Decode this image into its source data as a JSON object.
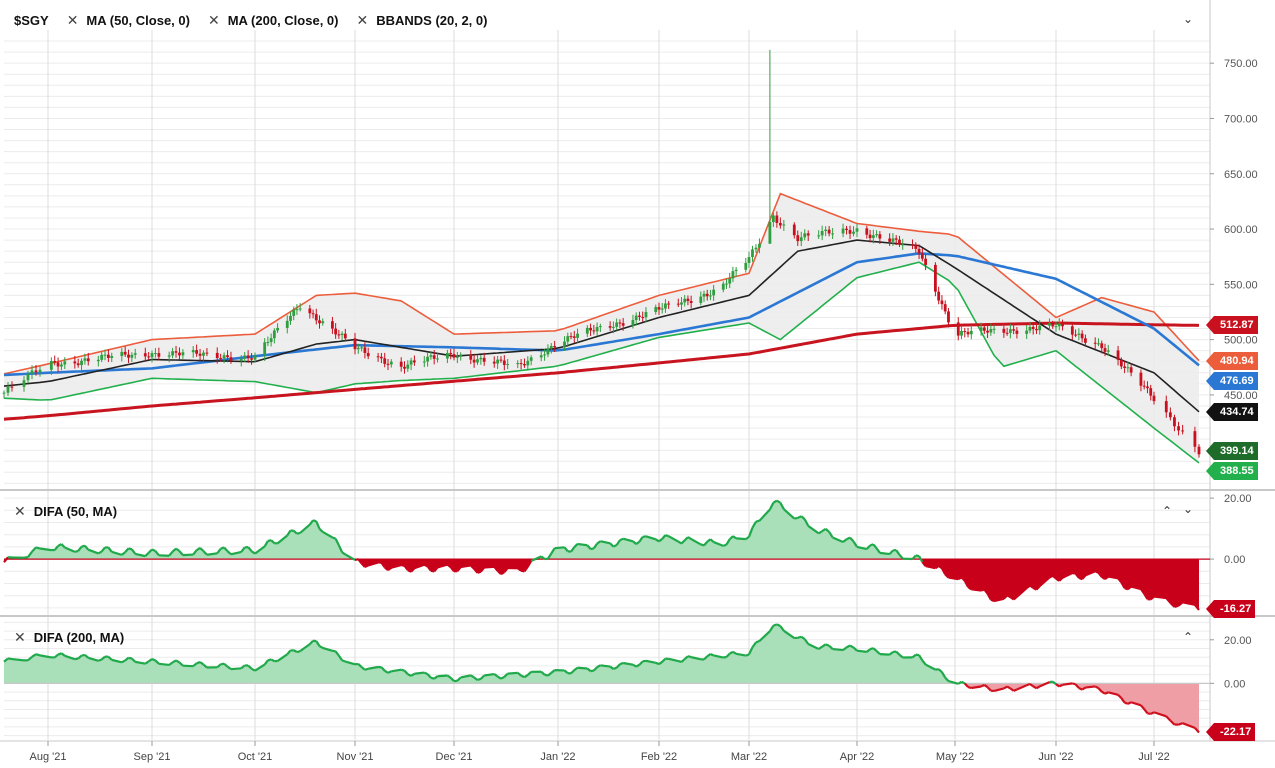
{
  "colors": {
    "up": "#2e9e3e",
    "down": "#c8101e",
    "bb_upper": "#ec5d3c",
    "bb_lower": "#22b04c",
    "bb_mid": "#222222",
    "ma50": "#2a78d4",
    "ma200": "#c8141e",
    "difa_pos_line": "#1fa94a",
    "difa_pos_fill": "#a9dfb9",
    "difa_neg": "#c8001a",
    "difa_neg_fill": "#ef9ea5",
    "difa_neg_line": "#d0101e"
  },
  "legend_main": [
    {
      "label": "$SGY",
      "closable": false
    },
    {
      "label": "MA (50, Close, 0)",
      "closable": true
    },
    {
      "label": "MA (200, Close, 0)",
      "closable": true
    },
    {
      "label": "BBANDS (20, 2, 0)",
      "closable": true
    }
  ],
  "legend_difa50": {
    "label": "DIFA (50, MA)"
  },
  "legend_difa200": {
    "label": "DIFA (200, MA)"
  },
  "icons": {
    "close": "close-icon",
    "collapse": "chevron-down-icon",
    "expand": "chevron-up-icon"
  },
  "badges": [
    {
      "text": "512.87",
      "color": "#c8101e",
      "pane": "main",
      "value": 512.87
    },
    {
      "text": "480.94",
      "color": "#ec5d3c",
      "pane": "main",
      "value": 480.94
    },
    {
      "text": "476.69",
      "color": "#2a78d4",
      "pane": "main",
      "value": 476.69
    },
    {
      "text": "434.74",
      "color": "#111111",
      "pane": "main",
      "value": 434.74
    },
    {
      "text": "399.14",
      "color": "#1e6b2a",
      "pane": "main",
      "value": 399.14
    },
    {
      "text": "388.55",
      "color": "#22b04c",
      "pane": "main",
      "value": 388.55
    },
    {
      "text": "-16.27",
      "color": "#c8001a",
      "pane": "difa50",
      "value": -16.27
    },
    {
      "text": "-22.17",
      "color": "#c8001a",
      "pane": "difa200",
      "value": -22.17
    }
  ],
  "chart_data": [
    {
      "type": "candlestick",
      "title": "$SGY",
      "x_ticks": [
        "Aug '21",
        "Sep '21",
        "Oct '21",
        "Nov '21",
        "Dec '21",
        "Jan '22",
        "Feb '22",
        "Mar '22",
        "Apr '22",
        "May '22",
        "Jun '22",
        "Jul '22"
      ],
      "y_ticks": [
        "450.00",
        "500.00",
        "550.00",
        "600.00",
        "650.00",
        "700.00",
        "750.00"
      ],
      "ylim": [
        364,
        780
      ],
      "grid": true,
      "x": [
        "2021-07-21",
        "2021-08-01",
        "2021-09-01",
        "2021-10-01",
        "2021-10-15",
        "2021-11-01",
        "2021-11-15",
        "2021-12-01",
        "2021-12-20",
        "2022-01-01",
        "2022-02-01",
        "2022-02-20",
        "2022-03-01",
        "2022-03-06",
        "2022-03-08",
        "2022-03-15",
        "2022-04-01",
        "2022-04-20",
        "2022-05-01",
        "2022-06-01",
        "2022-06-15",
        "2022-07-01",
        "2022-07-12"
      ],
      "close": [
        452,
        478,
        488,
        484,
        532,
        492,
        476,
        487,
        475,
        498,
        527,
        546,
        573,
        600,
        612,
        592,
        600,
        580,
        505,
        512,
        495,
        447,
        399.14
      ],
      "high_spike": {
        "date": "2022-03-07",
        "high": 762,
        "low": 603
      },
      "series": [
        {
          "name": "MA (50, Close, 0)",
          "x": [
            "2021-07-21",
            "2021-08-01",
            "2021-09-01",
            "2021-10-01",
            "2021-11-01",
            "2021-12-01",
            "2022-01-01",
            "2022-02-01",
            "2022-03-01",
            "2022-04-01",
            "2022-04-20",
            "2022-05-01",
            "2022-06-01",
            "2022-07-01",
            "2022-07-12"
          ],
          "values": [
            468,
            470,
            474,
            485,
            495,
            493,
            490,
            505,
            520,
            570,
            578,
            576,
            555,
            510,
            476.69
          ]
        },
        {
          "name": "MA (200, Close, 0)",
          "x": [
            "2021-07-21",
            "2021-09-01",
            "2021-11-01",
            "2022-01-01",
            "2022-03-01",
            "2022-04-01",
            "2022-05-01",
            "2022-06-01",
            "2022-07-12"
          ],
          "values": [
            428,
            440,
            455,
            470,
            487,
            505,
            513,
            515,
            512.87
          ]
        },
        {
          "name": "BBANDS upper",
          "x": [
            "2021-07-21",
            "2021-08-01",
            "2021-09-01",
            "2021-10-01",
            "2021-10-20",
            "2021-11-01",
            "2021-11-15",
            "2021-12-01",
            "2022-01-01",
            "2022-02-01",
            "2022-03-01",
            "2022-03-10",
            "2022-04-01",
            "2022-04-20",
            "2022-05-01",
            "2022-06-01",
            "2022-06-15",
            "2022-07-01",
            "2022-07-12"
          ],
          "values": [
            469,
            478,
            500,
            505,
            540,
            542,
            535,
            505,
            508,
            540,
            560,
            632,
            605,
            598,
            595,
            520,
            538,
            525,
            480.94
          ]
        },
        {
          "name": "BBANDS lower",
          "x": [
            "2021-07-21",
            "2021-08-01",
            "2021-09-01",
            "2021-10-01",
            "2021-10-20",
            "2021-11-01",
            "2021-11-15",
            "2021-12-01",
            "2022-01-01",
            "2022-02-01",
            "2022-03-01",
            "2022-03-10",
            "2022-04-01",
            "2022-04-20",
            "2022-05-01",
            "2022-05-15",
            "2022-06-01",
            "2022-07-01",
            "2022-07-12"
          ],
          "values": [
            447,
            445,
            465,
            462,
            452,
            460,
            463,
            465,
            476,
            502,
            515,
            500,
            556,
            570,
            550,
            475,
            490,
            420,
            388.55
          ]
        },
        {
          "name": "BBANDS middle",
          "x": [
            "2021-07-21",
            "2021-08-01",
            "2021-09-01",
            "2021-10-01",
            "2021-10-20",
            "2021-11-01",
            "2021-12-01",
            "2022-01-01",
            "2022-02-01",
            "2022-03-01",
            "2022-03-15",
            "2022-04-01",
            "2022-04-20",
            "2022-05-01",
            "2022-06-01",
            "2022-07-01",
            "2022-07-12"
          ],
          "values": [
            458,
            462,
            482,
            480,
            496,
            500,
            485,
            492,
            520,
            540,
            580,
            590,
            585,
            565,
            505,
            470,
            434.74
          ]
        }
      ]
    },
    {
      "type": "area",
      "title": "DIFA (50, MA)",
      "y_ticks": [
        "20.00",
        "0.00"
      ],
      "ylim": [
        -18,
        22
      ],
      "x": [
        "2021-07-21",
        "2021-08-01",
        "2021-09-01",
        "2021-10-01",
        "2021-10-20",
        "2021-11-01",
        "2021-11-15",
        "2021-12-01",
        "2021-12-20",
        "2022-01-01",
        "2022-02-01",
        "2022-02-20",
        "2022-03-01",
        "2022-03-08",
        "2022-03-20",
        "2022-04-01",
        "2022-04-20",
        "2022-05-01",
        "2022-05-15",
        "2022-06-01",
        "2022-06-15",
        "2022-07-01",
        "2022-07-12"
      ],
      "values": [
        -1,
        4,
        2,
        3,
        12,
        -1,
        -3,
        -3,
        -4,
        3,
        7,
        5,
        8,
        19,
        10,
        5,
        0,
        -6,
        -14,
        -6,
        -5,
        -13,
        -16.27
      ]
    },
    {
      "type": "area",
      "title": "DIFA (200, MA)",
      "y_ticks": [
        "20.00",
        "0.00"
      ],
      "ylim": [
        -26,
        30
      ],
      "x": [
        "2021-07-21",
        "2021-08-01",
        "2021-09-01",
        "2021-10-01",
        "2021-10-20",
        "2021-11-01",
        "2021-12-01",
        "2022-01-01",
        "2022-02-01",
        "2022-03-01",
        "2022-03-08",
        "2022-03-20",
        "2022-04-01",
        "2022-04-20",
        "2022-05-01",
        "2022-05-15",
        "2022-06-01",
        "2022-06-15",
        "2022-07-01",
        "2022-07-12"
      ],
      "values": [
        10,
        13,
        10,
        7,
        19,
        8,
        2,
        5,
        10,
        14,
        27,
        17,
        16,
        12,
        0,
        -3,
        0,
        -3,
        -14,
        -22.17
      ]
    }
  ]
}
